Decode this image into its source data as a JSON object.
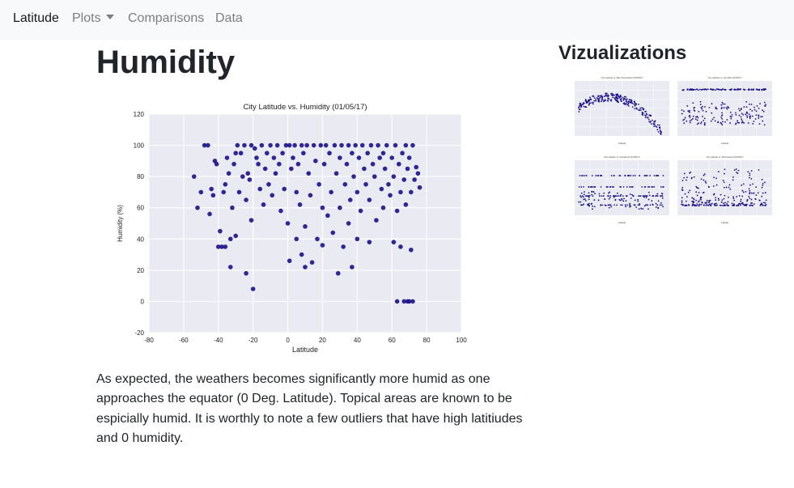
{
  "navbar": {
    "brand": "Latitude",
    "plots_label": "Plots",
    "comparisons_label": "Comparisons",
    "data_label": "Data"
  },
  "page": {
    "title": "Humidity",
    "side_title": "Vizualizations",
    "description": "As expected, the weathers becomes significantly more humid as one approaches the equator (0 Deg. Latitude). Topical areas are known to be espicially humid. It is worthly to note a few outliers that have high latitiudes and 0 humidity."
  },
  "colors": {
    "navbar_bg": "#f8f9fa",
    "plot_bg": "#eaeaf2",
    "grid": "#ffffff",
    "point": "#1c0f8a"
  },
  "chart_data": {
    "type": "scatter",
    "title": "City Latitude vs. Humidity (01/05/17)",
    "xlabel": "Latitude",
    "ylabel": "Humidity (%)",
    "xlim": [
      -80,
      100
    ],
    "ylim": [
      -20,
      120
    ],
    "xticks": [
      -80,
      -60,
      -40,
      -20,
      0,
      20,
      40,
      60,
      80,
      100
    ],
    "yticks": [
      -20,
      0,
      20,
      40,
      60,
      80,
      100,
      120
    ],
    "grid": true,
    "series": [
      {
        "points": [
          [
            -54,
            80
          ],
          [
            -52,
            60
          ],
          [
            -50,
            70
          ],
          [
            -48,
            100
          ],
          [
            -46,
            100
          ],
          [
            -45,
            56
          ],
          [
            -44,
            72
          ],
          [
            -43,
            68
          ],
          [
            -42,
            90
          ],
          [
            -41,
            88
          ],
          [
            -40,
            35
          ],
          [
            -39,
            45
          ],
          [
            -38,
            35
          ],
          [
            -37,
            70
          ],
          [
            -36,
            75
          ],
          [
            -36,
            35
          ],
          [
            -35,
            92
          ],
          [
            -34,
            82
          ],
          [
            -33,
            22
          ],
          [
            -33,
            40
          ],
          [
            -32,
            60
          ],
          [
            -31,
            88
          ],
          [
            -30,
            95
          ],
          [
            -30,
            42
          ],
          [
            -29,
            100
          ],
          [
            -28,
            70
          ],
          [
            -27,
            95
          ],
          [
            -26,
            80
          ],
          [
            -25,
            100
          ],
          [
            -24,
            65
          ],
          [
            -24,
            18
          ],
          [
            -23,
            82
          ],
          [
            -22,
            78
          ],
          [
            -21,
            100
          ],
          [
            -21,
            52
          ],
          [
            -20,
            8
          ],
          [
            -19,
            98
          ],
          [
            -18,
            92
          ],
          [
            -17,
            88
          ],
          [
            -16,
            72
          ],
          [
            -15,
            100
          ],
          [
            -14,
            62
          ],
          [
            -13,
            85
          ],
          [
            -12,
            95
          ],
          [
            -11,
            75
          ],
          [
            -10,
            100
          ],
          [
            -9,
            68
          ],
          [
            -8,
            92
          ],
          [
            -7,
            82
          ],
          [
            -6,
            100
          ],
          [
            -5,
            88
          ],
          [
            -4,
            58
          ],
          [
            -3,
            95
          ],
          [
            -2,
            72
          ],
          [
            -1,
            100
          ],
          [
            0,
            50
          ],
          [
            1,
            100
          ],
          [
            1,
            26
          ],
          [
            2,
            85
          ],
          [
            3,
            92
          ],
          [
            4,
            100
          ],
          [
            5,
            40
          ],
          [
            5,
            70
          ],
          [
            6,
            88
          ],
          [
            7,
            62
          ],
          [
            8,
            100
          ],
          [
            8,
            30
          ],
          [
            9,
            95
          ],
          [
            10,
            48
          ],
          [
            10,
            22
          ],
          [
            11,
            100
          ],
          [
            12,
            82
          ],
          [
            13,
            68
          ],
          [
            14,
            25
          ],
          [
            15,
            100
          ],
          [
            16,
            90
          ],
          [
            17,
            40
          ],
          [
            18,
            75
          ],
          [
            19,
            100
          ],
          [
            20,
            60
          ],
          [
            20,
            36
          ],
          [
            21,
            88
          ],
          [
            22,
            100
          ],
          [
            23,
            55
          ],
          [
            24,
            95
          ],
          [
            25,
            70
          ],
          [
            26,
            44
          ],
          [
            27,
            100
          ],
          [
            28,
            82
          ],
          [
            29,
            18
          ],
          [
            30,
            92
          ],
          [
            30,
            60
          ],
          [
            31,
            100
          ],
          [
            32,
            35
          ],
          [
            33,
            75
          ],
          [
            34,
            88
          ],
          [
            35,
            100
          ],
          [
            35,
            50
          ],
          [
            36,
            65
          ],
          [
            37,
            95
          ],
          [
            37,
            22
          ],
          [
            38,
            80
          ],
          [
            39,
            100
          ],
          [
            40,
            70
          ],
          [
            40,
            40
          ],
          [
            41,
            92
          ],
          [
            42,
            58
          ],
          [
            43,
            100
          ],
          [
            44,
            85
          ],
          [
            45,
            75
          ],
          [
            46,
            95
          ],
          [
            47,
            38
          ],
          [
            47,
            65
          ],
          [
            48,
            100
          ],
          [
            49,
            88
          ],
          [
            50,
            80
          ],
          [
            51,
            52
          ],
          [
            52,
            100
          ],
          [
            53,
            92
          ],
          [
            54,
            72
          ],
          [
            55,
            60
          ],
          [
            55,
            95
          ],
          [
            56,
            85
          ],
          [
            57,
            100
          ],
          [
            58,
            75
          ],
          [
            59,
            68
          ],
          [
            60,
            92
          ],
          [
            61,
            38
          ],
          [
            61,
            80
          ],
          [
            62,
            100
          ],
          [
            63,
            58
          ],
          [
            63,
            0
          ],
          [
            64,
            88
          ],
          [
            65,
            70
          ],
          [
            65,
            35
          ],
          [
            66,
            95
          ],
          [
            67,
            0
          ],
          [
            67,
            78
          ],
          [
            68,
            100
          ],
          [
            68,
            62
          ],
          [
            69,
            0
          ],
          [
            69,
            85
          ],
          [
            70,
            92
          ],
          [
            70,
            0
          ],
          [
            71,
            70
          ],
          [
            71,
            33
          ],
          [
            72,
            100
          ],
          [
            72,
            0
          ],
          [
            73,
            78
          ],
          [
            74,
            86
          ],
          [
            75,
            82
          ],
          [
            76,
            73
          ]
        ]
      }
    ]
  },
  "thumbnails": [
    {
      "title": "City Latitude vs. Max Temperature (01/05/17)",
      "kind": "temp"
    },
    {
      "title": "City Latitude vs. Humidity (01/05/17)",
      "kind": "humidity"
    },
    {
      "title": "City Latitude vs. Cloudiness (01/05/17)",
      "kind": "cloud"
    },
    {
      "title": "City Latitude vs. Wind Speed (01/05/17)",
      "kind": "wind"
    }
  ]
}
